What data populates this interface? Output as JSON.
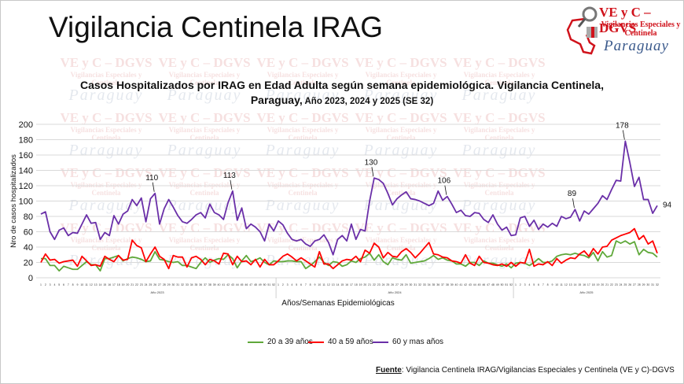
{
  "header": {
    "title": "Vigilancia Centinela IRAG",
    "logo": {
      "line1": "VE y C – DGVS",
      "line2": "Vigilancias Especiales y Centinela",
      "line3": "Paraguay"
    }
  },
  "watermark": {
    "line1": "VE y C – DGVS",
    "line2": "Vigilancias Especiales y",
    "line3": "Centinela",
    "line4": "Paraguay"
  },
  "footer": {
    "label": "Fuente",
    "text": ": Vigilancia  Centinela IRAG/Vigilancias Especiales y Centinela (VE y C)-DGVS"
  },
  "colors": {
    "green": "#5fa83a",
    "red": "#ff0000",
    "purple": "#6a2fa8"
  },
  "chart_data": {
    "type": "line",
    "title": "Casos Hospitalizados por IRAG en Edad Adulta según semana epidemiológica. Vigilancia Centinela,",
    "title_line2_bold": "Paraguay,",
    "title_line2": " Año 2023, 2024 y 2025 (SE 32)",
    "xlabel": "Años/Semanas Epidemiológicas",
    "ylabel": "Nro de casos hospitalizados",
    "ylim": [
      0,
      200
    ],
    "yticks": [
      0,
      20,
      40,
      60,
      80,
      100,
      120,
      140,
      160,
      180,
      200
    ],
    "grid": true,
    "legend_position": "bottom",
    "years": [
      {
        "label": "Año 2023",
        "weeks": 52
      },
      {
        "label": "Año 2024",
        "weeks": 52
      },
      {
        "label": "Año 2025",
        "weeks": 32
      }
    ],
    "series": [
      {
        "name": "20 a 39 años",
        "color": "#5fa83a",
        "values": [
          25,
          25,
          16,
          16,
          9,
          15,
          13,
          11,
          11,
          16,
          21,
          17,
          17,
          9,
          25,
          25,
          27,
          29,
          22,
          25,
          27,
          26,
          24,
          21,
          22,
          34,
          24,
          23,
          21,
          20,
          21,
          16,
          16,
          14,
          12,
          20,
          26,
          20,
          23,
          25,
          24,
          30,
          25,
          13,
          22,
          29,
          21,
          23,
          26,
          20,
          17,
          22,
          21,
          21,
          22,
          22,
          21,
          21,
          12,
          16,
          21,
          27,
          20,
          16,
          21,
          20,
          15,
          17,
          22,
          20,
          25,
          27,
          32,
          23,
          30,
          21,
          17,
          26,
          24,
          23,
          30,
          19,
          20,
          21,
          22,
          25,
          29,
          24,
          26,
          23,
          22,
          18,
          18,
          15,
          20,
          20,
          16,
          22,
          19,
          19,
          17,
          15,
          18,
          13,
          19,
          20,
          19,
          16,
          20,
          25,
          20,
          20,
          22,
          28,
          30,
          31,
          30,
          32,
          30,
          29,
          26,
          33,
          22,
          34,
          27,
          29,
          48,
          45,
          48,
          44,
          47,
          30,
          37,
          33,
          32,
          27
        ]
      },
      {
        "name": "40 a 59 años",
        "color": "#ff0000",
        "values": [
          20,
          31,
          23,
          24,
          19,
          21,
          22,
          23,
          15,
          28,
          22,
          16,
          17,
          15,
          28,
          24,
          21,
          29,
          23,
          24,
          49,
          42,
          39,
          21,
          31,
          40,
          28,
          24,
          12,
          29,
          27,
          27,
          14,
          26,
          28,
          24,
          17,
          24,
          22,
          18,
          32,
          31,
          17,
          28,
          21,
          22,
          17,
          24,
          14,
          24,
          17,
          17,
          22,
          28,
          31,
          27,
          22,
          26,
          22,
          18,
          14,
          34,
          18,
          18,
          12,
          17,
          22,
          24,
          23,
          28,
          21,
          36,
          32,
          45,
          40,
          26,
          33,
          28,
          27,
          34,
          38,
          33,
          26,
          32,
          39,
          46,
          31,
          30,
          27,
          26,
          22,
          21,
          19,
          30,
          19,
          16,
          28,
          20,
          19,
          17,
          16,
          18,
          15,
          20,
          15,
          20,
          19,
          37,
          15,
          18,
          17,
          21,
          16,
          25,
          19,
          23,
          26,
          25,
          31,
          35,
          28,
          38,
          31,
          40,
          41,
          49,
          52,
          55,
          57,
          59,
          64,
          50,
          55,
          44,
          48,
          32
        ]
      },
      {
        "name": "60 y mas años",
        "color": "#6a2fa8",
        "values": [
          83,
          86,
          60,
          50,
          62,
          65,
          55,
          59,
          58,
          70,
          82,
          71,
          72,
          50,
          59,
          55,
          81,
          70,
          83,
          87,
          102,
          94,
          104,
          73,
          103,
          110,
          70,
          90,
          102,
          92,
          81,
          73,
          71,
          76,
          82,
          85,
          78,
          96,
          85,
          82,
          76,
          98,
          113,
          75,
          91,
          64,
          70,
          66,
          60,
          48,
          70,
          61,
          74,
          69,
          58,
          50,
          48,
          50,
          44,
          41,
          48,
          50,
          56,
          46,
          30,
          50,
          55,
          48,
          70,
          50,
          63,
          61,
          100,
          130,
          128,
          123,
          110,
          95,
          103,
          108,
          112,
          103,
          102,
          100,
          97,
          94,
          97,
          113,
          101,
          106,
          96,
          85,
          88,
          81,
          80,
          85,
          84,
          76,
          72,
          82,
          70,
          62,
          66,
          55,
          56,
          78,
          80,
          67,
          75,
          63,
          70,
          66,
          71,
          67,
          80,
          77,
          79,
          89,
          74,
          87,
          83,
          90,
          97,
          107,
          102,
          115,
          127,
          126,
          178,
          150,
          119,
          131,
          102,
          102,
          84,
          94
        ]
      }
    ],
    "annotations": [
      {
        "series": 2,
        "index": 25,
        "text": "110"
      },
      {
        "series": 2,
        "index": 42,
        "text": "113"
      },
      {
        "series": 2,
        "index": 73,
        "text": "130"
      },
      {
        "series": 2,
        "index": 89,
        "text": "106"
      },
      {
        "series": 2,
        "index": 117,
        "text": "89"
      },
      {
        "series": 2,
        "index": 128,
        "text": "178"
      },
      {
        "series": 2,
        "index": 135,
        "text": "94"
      }
    ]
  }
}
